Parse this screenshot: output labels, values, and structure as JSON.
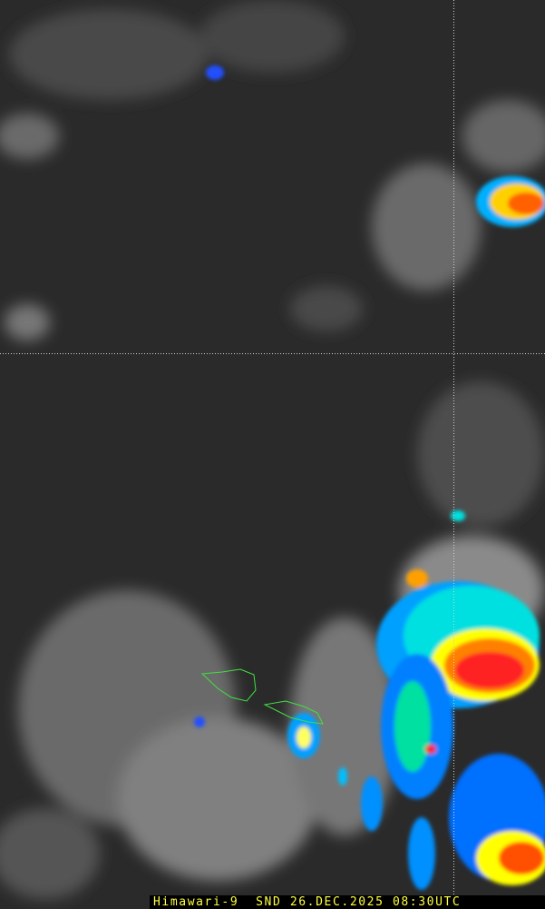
{
  "caption": "Himawari-9  SND 26.DEC.2025 08:30UTC",
  "colors": {
    "background": "#2a2a2a",
    "graticule": "#d0d0d0",
    "coastline": "#40e040",
    "caption_text": "#ffff40",
    "enhancement": [
      "#2020c0",
      "#00a0ff",
      "#00e0e0",
      "#ffff00",
      "#ff8000",
      "#ff2020"
    ]
  }
}
